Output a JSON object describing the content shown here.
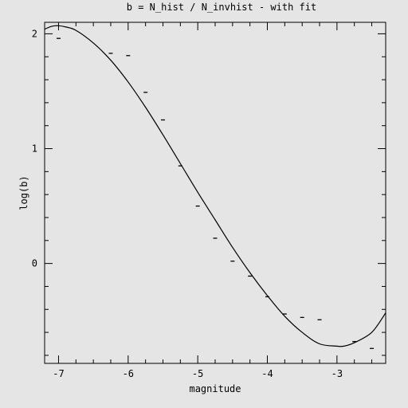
{
  "chart_data": {
    "type": "scatter",
    "title": "b = N_hist / N_invhist - with fit",
    "xlabel": "magnitude",
    "ylabel": "log(b)",
    "xlim": [
      -7.2,
      -2.3
    ],
    "ylim": [
      -0.87,
      2.1
    ],
    "grid": false,
    "x_ticks": [
      -7,
      -6,
      -5,
      -4,
      -3
    ],
    "x_tick_labels": [
      "-7",
      "-6",
      "-5",
      "-4",
      "-3"
    ],
    "y_ticks": [
      2,
      1,
      0
    ],
    "y_tick_labels": [
      "2",
      "1",
      "0"
    ],
    "series": [
      {
        "style": "points",
        "x": [
          -7.0,
          -6.25,
          -6.0,
          -5.75,
          -5.5,
          -5.25,
          -5.0,
          -4.75,
          -4.5,
          -4.25,
          -4.0,
          -3.75,
          -3.5,
          -3.25,
          -2.75,
          -2.5
        ],
        "y": [
          1.96,
          1.83,
          1.81,
          1.49,
          1.25,
          0.85,
          0.5,
          0.22,
          0.02,
          -0.11,
          -0.29,
          -0.44,
          -0.47,
          -0.49,
          -0.68,
          -0.74
        ]
      },
      {
        "style": "line",
        "x": [
          -7.2,
          -7.1,
          -7.0,
          -6.9,
          -6.75,
          -6.5,
          -6.25,
          -6.0,
          -5.75,
          -5.5,
          -5.25,
          -5.0,
          -4.75,
          -4.5,
          -4.25,
          -4.0,
          -3.75,
          -3.5,
          -3.25,
          -3.0,
          -2.9,
          -2.75,
          -2.5,
          -2.3
        ],
        "y": [
          2.04,
          2.065,
          2.07,
          2.06,
          2.03,
          1.92,
          1.77,
          1.58,
          1.36,
          1.12,
          0.87,
          0.62,
          0.38,
          0.14,
          -0.08,
          -0.28,
          -0.46,
          -0.6,
          -0.7,
          -0.72,
          -0.72,
          -0.69,
          -0.6,
          -0.43
        ]
      }
    ]
  }
}
